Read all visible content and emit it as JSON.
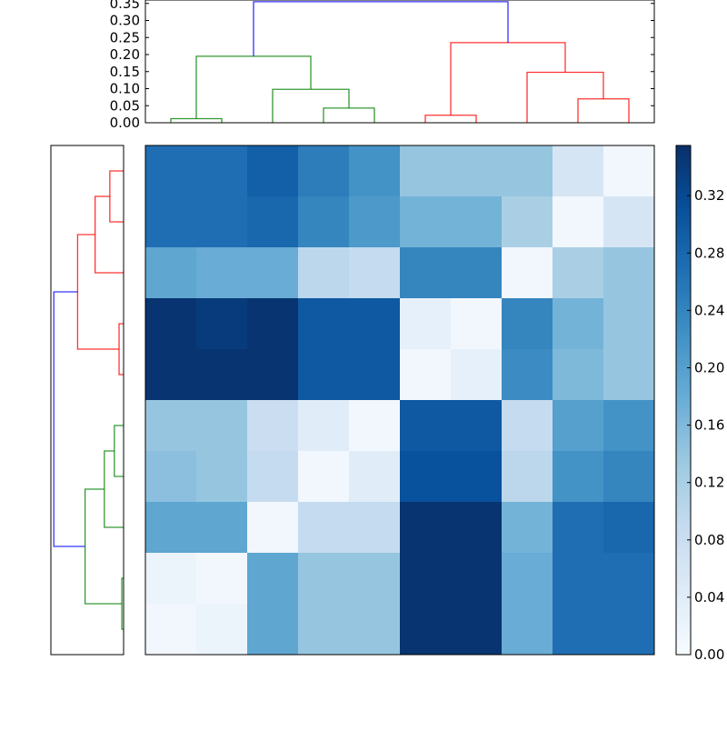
{
  "chart_data": {
    "type": "heatmap",
    "title": "",
    "colormap": "Blues",
    "value_range": [
      0.0,
      0.355
    ],
    "colorbar_ticks": [
      "0.00",
      "0.04",
      "0.08",
      "0.12",
      "0.16",
      "0.20",
      "0.24",
      "0.28",
      "0.32"
    ],
    "colorbar_tick_values": [
      0,
      0.04,
      0.08,
      0.12,
      0.16,
      0.2,
      0.24,
      0.28,
      0.32
    ],
    "colormap_stops": [
      "#f7fbff",
      "#deebf7",
      "#c6dbef",
      "#9ecae1",
      "#6baed6",
      "#4292c6",
      "#2171b5",
      "#08519c",
      "#08306b"
    ],
    "matrix": [
      [
        0.27,
        0.27,
        0.29,
        0.25,
        0.22,
        0.14,
        0.14,
        0.14,
        0.06,
        0.01
      ],
      [
        0.27,
        0.27,
        0.28,
        0.24,
        0.21,
        0.17,
        0.17,
        0.12,
        0.01,
        0.06
      ],
      [
        0.19,
        0.18,
        0.18,
        0.1,
        0.09,
        0.24,
        0.24,
        0.01,
        0.12,
        0.14
      ],
      [
        0.35,
        0.34,
        0.35,
        0.3,
        0.3,
        0.03,
        0.01,
        0.24,
        0.17,
        0.14
      ],
      [
        0.35,
        0.35,
        0.35,
        0.3,
        0.3,
        0.01,
        0.03,
        0.23,
        0.16,
        0.14
      ],
      [
        0.14,
        0.14,
        0.08,
        0.04,
        0.01,
        0.3,
        0.3,
        0.09,
        0.2,
        0.22
      ],
      [
        0.15,
        0.14,
        0.09,
        0.01,
        0.04,
        0.31,
        0.31,
        0.1,
        0.22,
        0.24
      ],
      [
        0.19,
        0.19,
        0.01,
        0.09,
        0.09,
        0.35,
        0.35,
        0.17,
        0.27,
        0.28
      ],
      [
        0.02,
        0.01,
        0.19,
        0.14,
        0.14,
        0.35,
        0.35,
        0.18,
        0.27,
        0.27
      ],
      [
        0.01,
        0.02,
        0.19,
        0.14,
        0.14,
        0.35,
        0.35,
        0.18,
        0.27,
        0.27
      ]
    ],
    "top_dendrogram": {
      "ylim": [
        0,
        0.36
      ],
      "yticks": [
        "0.00",
        "0.05",
        "0.10",
        "0.15",
        "0.20",
        "0.25",
        "0.30",
        "0.35"
      ],
      "ytick_values": [
        0,
        0.05,
        0.1,
        0.15,
        0.2,
        0.25,
        0.3,
        0.35
      ],
      "links": [
        {
          "icoord": [
            5,
            5,
            15,
            15
          ],
          "dcoord": [
            0,
            0.012,
            0.012,
            0
          ],
          "color": "#008000"
        },
        {
          "icoord": [
            35,
            35,
            45,
            45
          ],
          "dcoord": [
            0,
            0.043,
            0.043,
            0
          ],
          "color": "#008000"
        },
        {
          "icoord": [
            25,
            25,
            40,
            40
          ],
          "dcoord": [
            0,
            0.098,
            0.098,
            0.043
          ],
          "color": "#008000"
        },
        {
          "icoord": [
            10,
            10,
            32.5,
            32.5
          ],
          "dcoord": [
            0.012,
            0.195,
            0.195,
            0.098
          ],
          "color": "#008000"
        },
        {
          "icoord": [
            55,
            55,
            65,
            65
          ],
          "dcoord": [
            0,
            0.022,
            0.022,
            0
          ],
          "color": "#ff0000"
        },
        {
          "icoord": [
            85,
            85,
            95,
            95
          ],
          "dcoord": [
            0,
            0.07,
            0.07,
            0
          ],
          "color": "#ff0000"
        },
        {
          "icoord": [
            75,
            75,
            90,
            90
          ],
          "dcoord": [
            0,
            0.148,
            0.148,
            0.07
          ],
          "color": "#ff0000"
        },
        {
          "icoord": [
            60,
            60,
            82.5,
            82.5
          ],
          "dcoord": [
            0.022,
            0.235,
            0.235,
            0.148
          ],
          "color": "#ff0000"
        },
        {
          "icoord": [
            21.25,
            21.25,
            71.25,
            71.25
          ],
          "dcoord": [
            0.195,
            0.355,
            0.355,
            0.235
          ],
          "color": "#0000ff"
        }
      ]
    },
    "left_dendrogram": {
      "xlim": [
        0.37,
        0
      ],
      "links": [
        {
          "icoord": [
            5,
            5,
            15,
            15
          ],
          "dcoord": [
            0,
            0.07,
            0.07,
            0
          ],
          "color": "#ff0000"
        },
        {
          "icoord": [
            10,
            10,
            25,
            25
          ],
          "dcoord": [
            0.07,
            0.145,
            0.145,
            0
          ],
          "color": "#ff0000"
        },
        {
          "icoord": [
            35,
            35,
            45,
            45
          ],
          "dcoord": [
            0,
            0.023,
            0.023,
            0
          ],
          "color": "#ff0000"
        },
        {
          "icoord": [
            17.5,
            17.5,
            40,
            40
          ],
          "dcoord": [
            0.145,
            0.234,
            0.234,
            0.023
          ],
          "color": "#ff0000"
        },
        {
          "icoord": [
            55,
            55,
            65,
            65
          ],
          "dcoord": [
            0,
            0.047,
            0.047,
            0
          ],
          "color": "#008000"
        },
        {
          "icoord": [
            60,
            60,
            75,
            75
          ],
          "dcoord": [
            0.047,
            0.098,
            0.098,
            0
          ],
          "color": "#008000"
        },
        {
          "icoord": [
            85,
            85,
            95,
            95
          ],
          "dcoord": [
            0,
            0.009,
            0.009,
            0
          ],
          "color": "#008000"
        },
        {
          "icoord": [
            67.5,
            67.5,
            90,
            90
          ],
          "dcoord": [
            0.098,
            0.196,
            0.196,
            0.009
          ],
          "color": "#008000"
        },
        {
          "icoord": [
            28.75,
            28.75,
            78.75,
            78.75
          ],
          "dcoord": [
            0.234,
            0.355,
            0.355,
            0.196
          ],
          "color": "#0000ff"
        }
      ]
    }
  }
}
